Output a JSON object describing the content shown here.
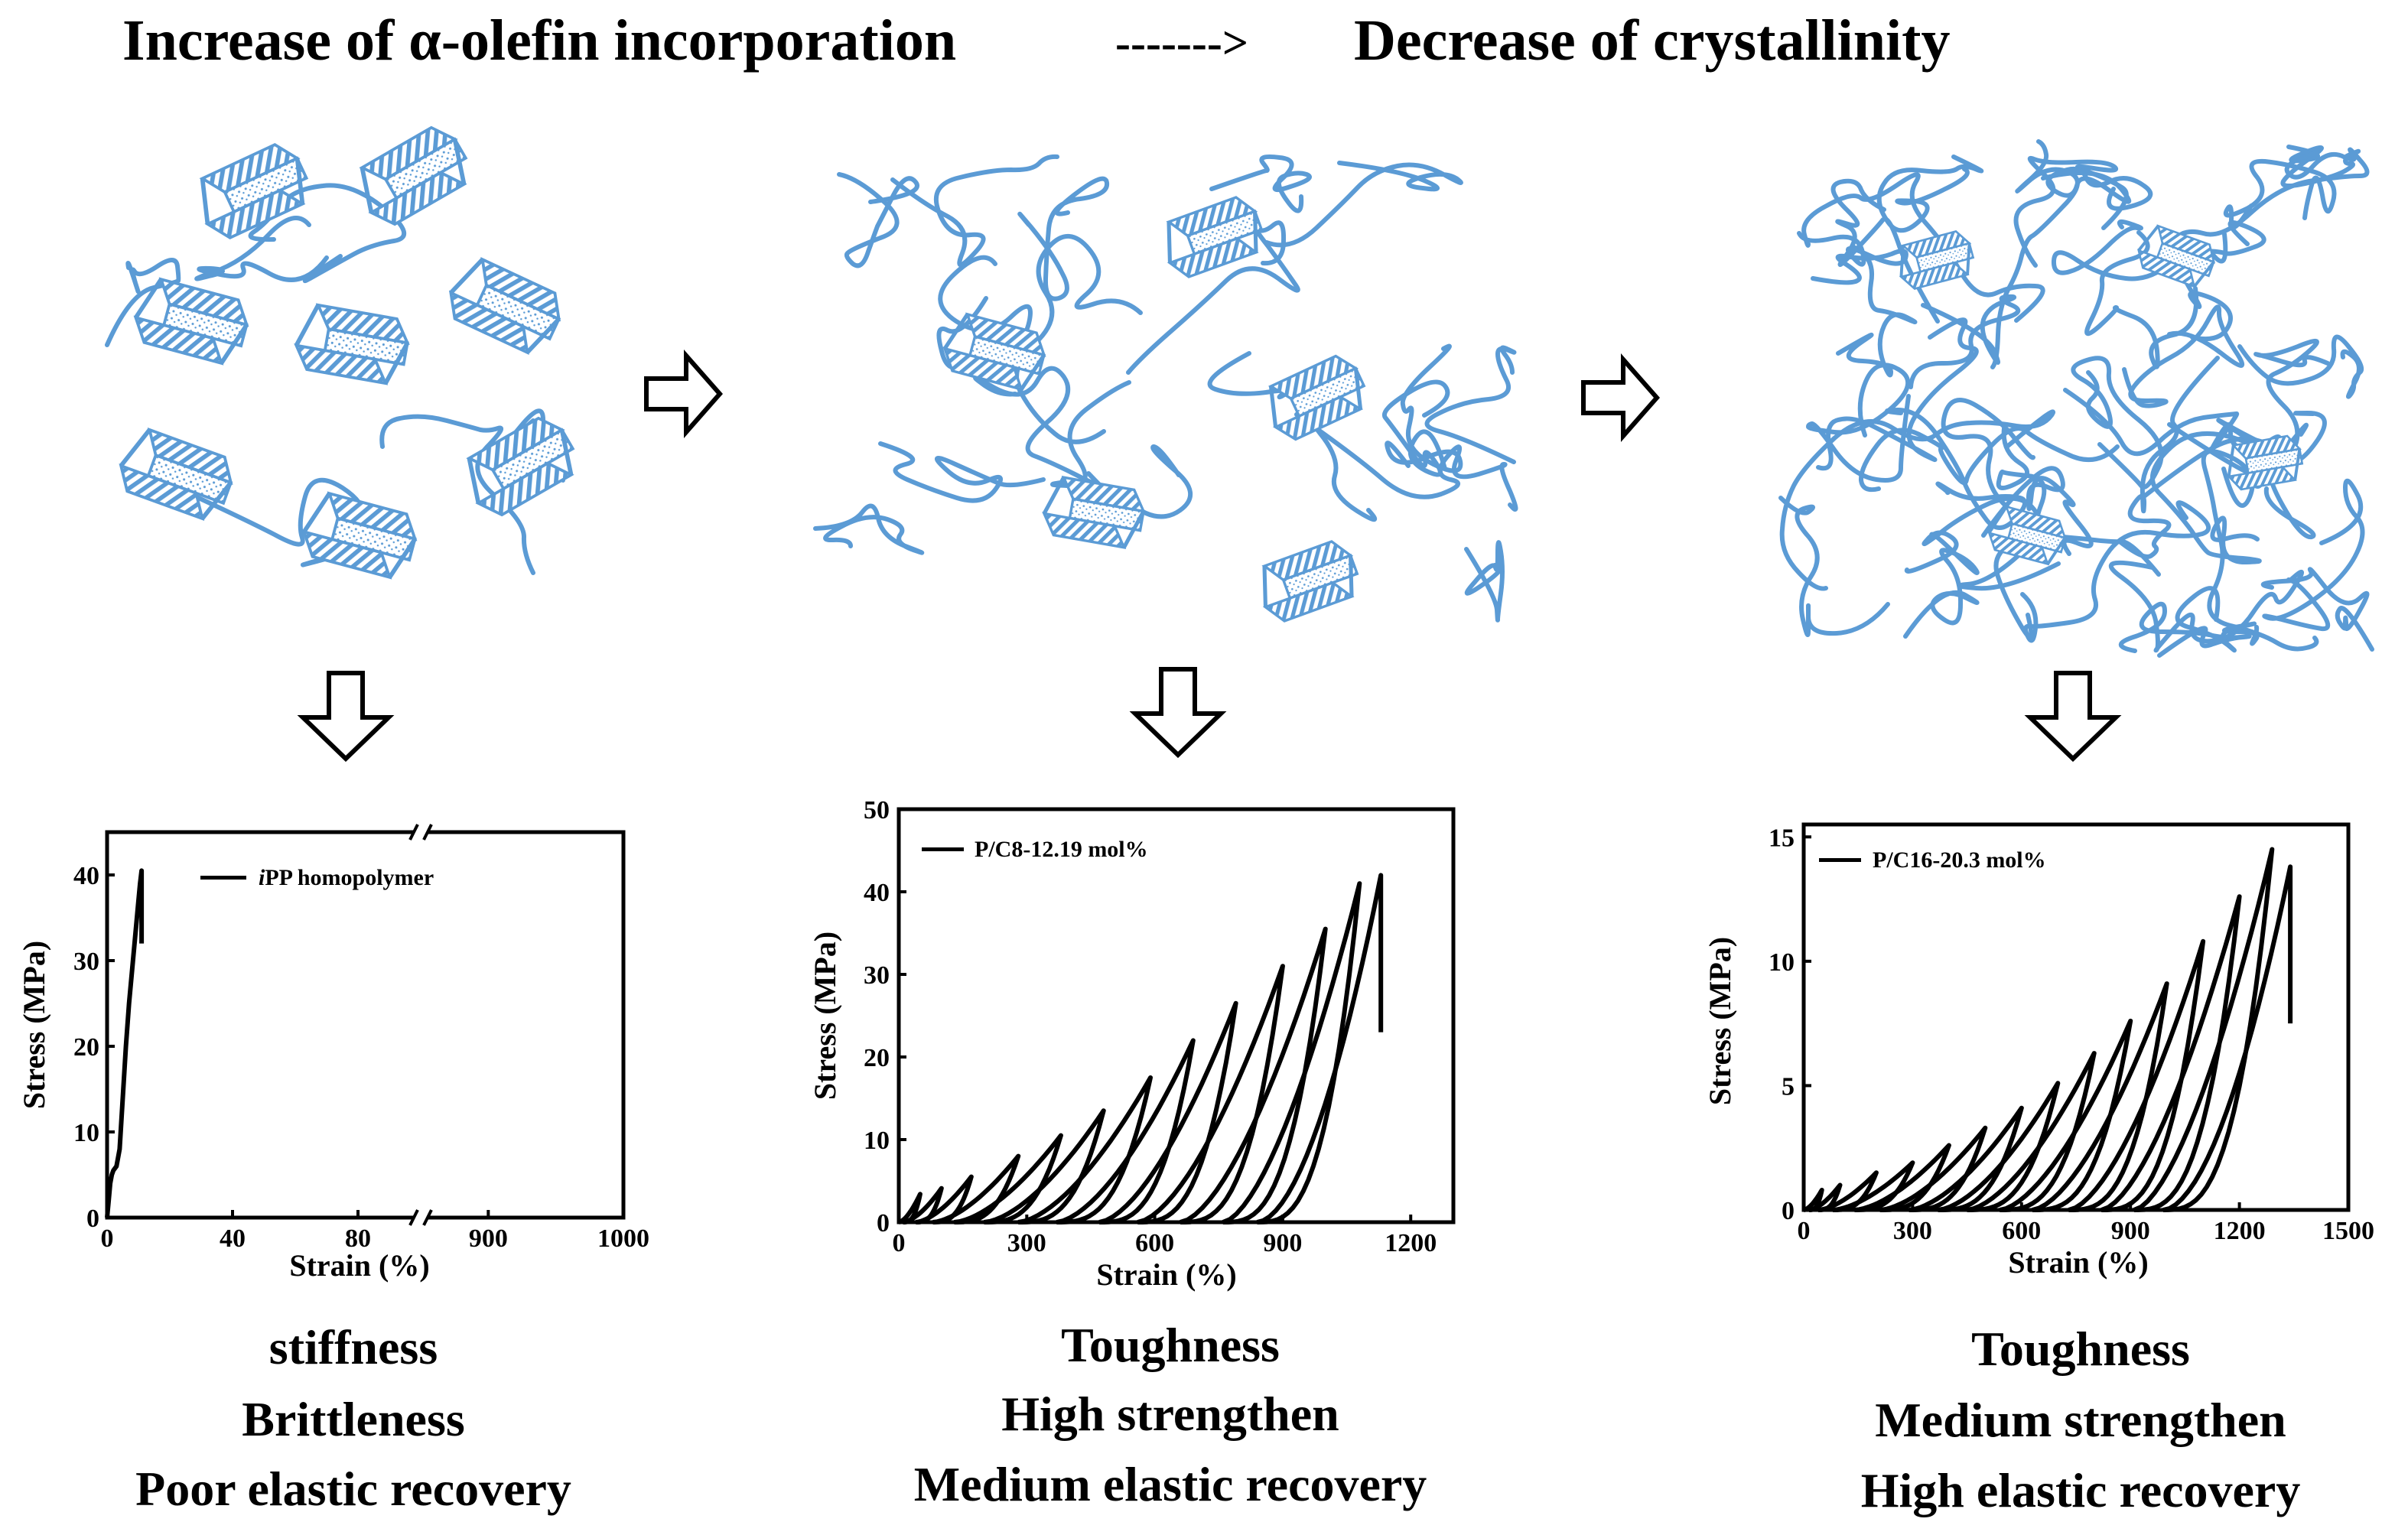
{
  "header": {
    "left": "Increase of α-olefin incorporation",
    "arrow": "------->",
    "right": "Decrease of crystallinity"
  },
  "colors": {
    "chain": "#5b9bd5",
    "curve": "#000000"
  },
  "panels": [
    {
      "properties": [
        "stiffness",
        "Brittleness",
        "Poor elastic recovery"
      ],
      "chart_data": {
        "type": "line",
        "title": "",
        "xlabel": "Strain (%)",
        "ylabel": "Stress (MPa)",
        "legend": {
          "italic": "i",
          "text": "PP homopolymer"
        },
        "legend_position": "top-left",
        "grid": false,
        "broken_axis": true,
        "x_segments": [
          {
            "range": [
              0,
              100
            ],
            "ticks": [
              "0",
              "40",
              "80"
            ]
          },
          {
            "range": [
              850,
              1000
            ],
            "ticks": [
              "900",
              "1000"
            ]
          }
        ],
        "ylim": [
          0,
          45
        ],
        "yticks": [
          "0",
          "10",
          "20",
          "30",
          "40"
        ],
        "series": [
          {
            "x": [
              0,
              0.5,
              1,
              1.5,
              2,
              3,
              4,
              5,
              6,
              7,
              8,
              9,
              10,
              10.5,
              11,
              11,
              11
            ],
            "y": [
              0,
              2,
              4,
              5,
              5.5,
              6,
              8,
              14,
              20,
              25,
              29,
              33,
              37,
              39,
              40.5,
              36,
              32
            ]
          }
        ]
      }
    },
    {
      "properties": [
        "Toughness",
        "High strengthen",
        "Medium elastic recovery"
      ],
      "chart_data": {
        "type": "line",
        "title": "",
        "xlabel": "Strain (%)",
        "ylabel": "Stress (MPa)",
        "legend": "P/C8-12.19 mol%",
        "legend_position": "top-left",
        "grid": false,
        "xlim": [
          0,
          1300
        ],
        "xticks": [
          "0",
          "300",
          "600",
          "900",
          "1200"
        ],
        "ylim": [
          0,
          50
        ],
        "yticks": [
          "0",
          "10",
          "20",
          "30",
          "40",
          "50"
        ],
        "cycles": [
          {
            "peak_strain": 50,
            "peak_stress": 3.4,
            "return_strain": 10
          },
          {
            "peak_strain": 100,
            "peak_stress": 4.1,
            "return_strain": 40
          },
          {
            "peak_strain": 170,
            "peak_stress": 5.5,
            "return_strain": 80
          },
          {
            "peak_strain": 280,
            "peak_stress": 8,
            "return_strain": 130
          },
          {
            "peak_strain": 380,
            "peak_stress": 10.5,
            "return_strain": 200
          },
          {
            "peak_strain": 480,
            "peak_stress": 13.5,
            "return_strain": 280
          },
          {
            "peak_strain": 590,
            "peak_stress": 17.5,
            "return_strain": 370
          },
          {
            "peak_strain": 690,
            "peak_stress": 22,
            "return_strain": 470
          },
          {
            "peak_strain": 790,
            "peak_stress": 26.5,
            "return_strain": 560
          },
          {
            "peak_strain": 900,
            "peak_stress": 31,
            "return_strain": 660
          },
          {
            "peak_strain": 1000,
            "peak_stress": 35.5,
            "return_strain": 760
          },
          {
            "peak_strain": 1080,
            "peak_stress": 41,
            "return_strain": 840
          }
        ],
        "final": {
          "peak_strain": 1130,
          "peak_stress": 42,
          "break_stress": 23
        }
      }
    },
    {
      "properties": [
        "Toughness",
        "Medium strengthen",
        "High elastic recovery"
      ],
      "chart_data": {
        "type": "line",
        "title": "",
        "xlabel": "Strain (%)",
        "ylabel": "Stress (MPa)",
        "legend": "P/C16-20.3 mol%",
        "legend_position": "top-left",
        "grid": false,
        "xlim": [
          0,
          1500
        ],
        "xticks": [
          "0",
          "300",
          "600",
          "900",
          "1200",
          "1500"
        ],
        "ylim": [
          0,
          15.5
        ],
        "yticks": [
          "0",
          "5",
          "10",
          "15"
        ],
        "cycles": [
          {
            "peak_strain": 50,
            "peak_stress": 0.8,
            "return_strain": 15
          },
          {
            "peak_strain": 100,
            "peak_stress": 1.0,
            "return_strain": 40
          },
          {
            "peak_strain": 200,
            "peak_stress": 1.5,
            "return_strain": 80
          },
          {
            "peak_strain": 300,
            "peak_stress": 1.9,
            "return_strain": 140
          },
          {
            "peak_strain": 400,
            "peak_stress": 2.6,
            "return_strain": 210
          },
          {
            "peak_strain": 500,
            "peak_stress": 3.3,
            "return_strain": 290
          },
          {
            "peak_strain": 600,
            "peak_stress": 4.1,
            "return_strain": 370
          },
          {
            "peak_strain": 700,
            "peak_stress": 5.1,
            "return_strain": 450
          },
          {
            "peak_strain": 800,
            "peak_stress": 6.3,
            "return_strain": 540
          },
          {
            "peak_strain": 900,
            "peak_stress": 7.6,
            "return_strain": 630
          },
          {
            "peak_strain": 1000,
            "peak_stress": 9.1,
            "return_strain": 730
          },
          {
            "peak_strain": 1100,
            "peak_stress": 10.8,
            "return_strain": 820
          },
          {
            "peak_strain": 1200,
            "peak_stress": 12.6,
            "return_strain": 910
          },
          {
            "peak_strain": 1290,
            "peak_stress": 14.5,
            "return_strain": 990
          }
        ],
        "final": {
          "peak_strain": 1340,
          "peak_stress": 13.8,
          "break_stress": 7.5
        }
      }
    }
  ]
}
